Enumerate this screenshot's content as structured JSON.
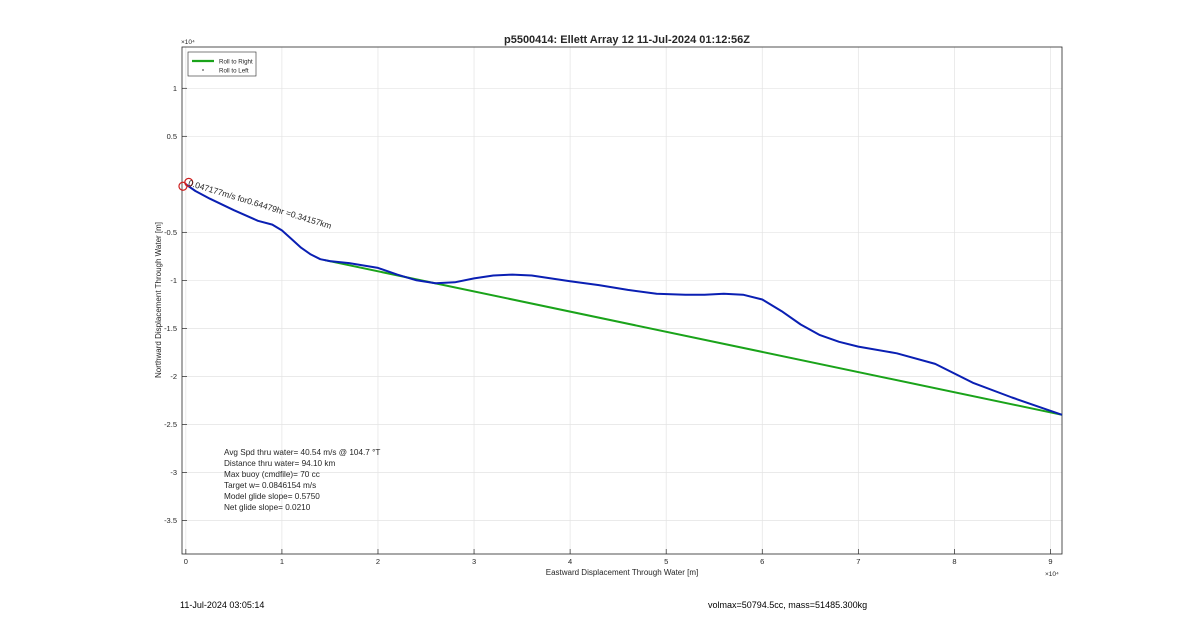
{
  "chart_data": {
    "type": "line",
    "title": "p5500414: Ellett Array 12 11-Jul-2024 01:12:56Z",
    "xlabel": "Eastward Displacement Through Water [m]",
    "ylabel": "Northward Displacement Through Water [m]",
    "x_exponent_label": "×10⁴",
    "y_exponent_label": "×10⁴",
    "xlim": [
      -0.04,
      9.12
    ],
    "ylim": [
      -3.85,
      1.43
    ],
    "xticks": [
      0,
      1,
      2,
      3,
      4,
      5,
      6,
      7,
      8,
      9
    ],
    "xtick_labels": [
      "0",
      "1",
      "2",
      "3",
      "4",
      "5",
      "6",
      "7",
      "8",
      "9"
    ],
    "yticks": [
      1,
      0.5,
      -0.5,
      -1,
      -1.5,
      -2,
      -2.5,
      -3,
      -3.5
    ],
    "ytick_labels": [
      "1",
      "0.5",
      "-0.5",
      "-1",
      "-1.5",
      "-2",
      "-2.5",
      "-3",
      "-3.5"
    ],
    "grid": true,
    "legend_position": "top-left",
    "legend": [
      {
        "label": "Roll to Right",
        "color": "#1aa31a",
        "marker": "line"
      },
      {
        "label": "Roll to Left",
        "color": "#555555",
        "marker": "dot"
      }
    ],
    "series": [
      {
        "color": "#0a1fb3",
        "x": [
          0.0,
          0.1,
          0.25,
          0.5,
          0.75,
          0.9,
          1.0,
          1.1,
          1.2,
          1.3,
          1.4,
          1.5,
          1.7,
          2.0,
          2.2,
          2.4,
          2.6,
          2.8,
          3.0,
          3.2,
          3.4,
          3.6,
          3.8,
          4.0,
          4.3,
          4.6,
          4.9,
          5.2,
          5.4,
          5.6,
          5.8,
          6.0,
          6.2,
          6.4,
          6.6,
          6.8,
          7.0,
          7.4,
          7.8,
          8.2,
          8.6,
          9.12
        ],
        "y": [
          0.0,
          -0.07,
          -0.15,
          -0.27,
          -0.38,
          -0.42,
          -0.48,
          -0.57,
          -0.66,
          -0.73,
          -0.78,
          -0.8,
          -0.82,
          -0.87,
          -0.94,
          -1.0,
          -1.03,
          -1.02,
          -0.98,
          -0.95,
          -0.94,
          -0.95,
          -0.98,
          -1.01,
          -1.05,
          -1.1,
          -1.14,
          -1.15,
          -1.15,
          -1.14,
          -1.15,
          -1.2,
          -1.32,
          -1.46,
          -1.57,
          -1.64,
          -1.69,
          -1.76,
          -1.87,
          -2.07,
          -2.22,
          -2.4
        ]
      },
      {
        "color": "#1aa31a",
        "x": [
          1.45,
          9.12
        ],
        "y": [
          -0.79,
          -2.4
        ]
      }
    ],
    "markers": [
      {
        "x": -0.03,
        "y": -0.02,
        "color": "#cc1f1f",
        "shape": "circle"
      },
      {
        "x": 0.03,
        "y": 0.02,
        "color": "#cc1f1f",
        "shape": "circle"
      }
    ],
    "annotations": [
      {
        "text": "0.047177m/s for0.64479hr =0.34157km",
        "x": 0.02,
        "y": 0.02,
        "rotation": -17
      }
    ],
    "stats": [
      "Avg Spd thru water= 40.54 m/s @ 104.7 °T",
      "Distance thru water= 94.10 km",
      "Max buoy (cmdfile)= 70 cc",
      "Target w= 0.0846154 m/s",
      "Model glide slope= 0.5750",
      "Net glide slope= 0.0210"
    ]
  },
  "footer": {
    "timestamp": "11-Jul-2024 03:05:14",
    "volume_mass": "volmax=50794.5cc, mass=51485.300kg"
  }
}
